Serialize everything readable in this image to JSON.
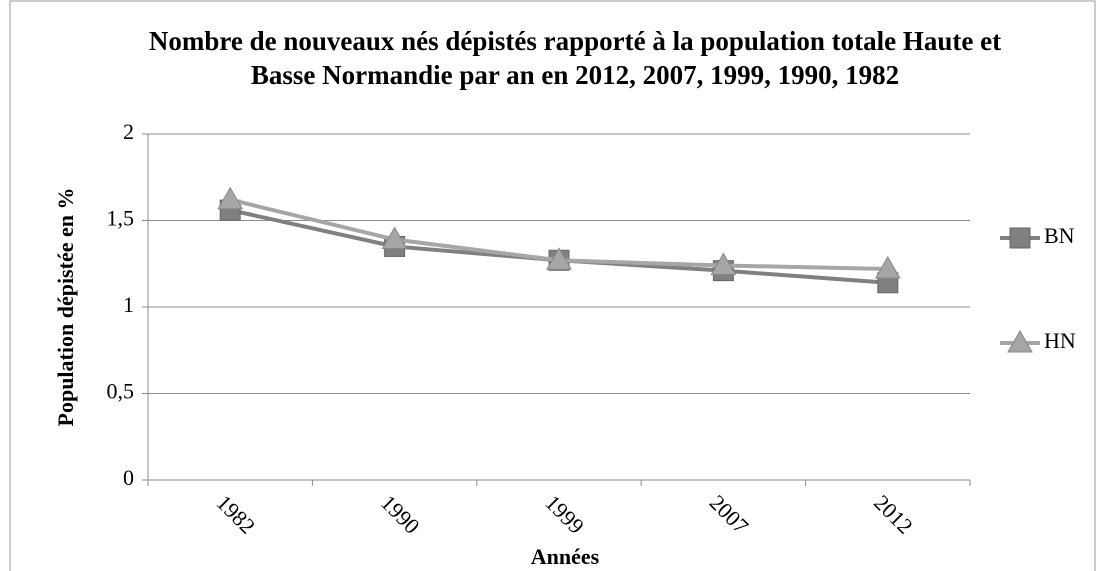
{
  "chart_data": {
    "type": "line",
    "title": "Nombre de nouveaux nés dépistés rapporté à la population totale Haute et Basse Normandie par an en 2012, 2007, 1999, 1990, 1982",
    "x_label": "Années",
    "y_label": "Population dépistée en %",
    "categories": [
      "1982",
      "1990",
      "1999",
      "2007",
      "2012"
    ],
    "series": [
      {
        "name": "BN",
        "color": "#808080",
        "values": [
          1.56,
          1.35,
          1.27,
          1.21,
          1.14
        ]
      },
      {
        "name": "HN",
        "color": "#a6a6a6",
        "values": [
          1.62,
          1.39,
          1.27,
          1.24,
          1.22
        ]
      }
    ],
    "ylim": [
      0,
      2
    ],
    "yticks": [
      0,
      {
        "value": 0.5,
        "label": "0,5"
      },
      1,
      {
        "value": 1.5,
        "label": "1,5"
      },
      2
    ],
    "grid": true,
    "legend": "right"
  }
}
